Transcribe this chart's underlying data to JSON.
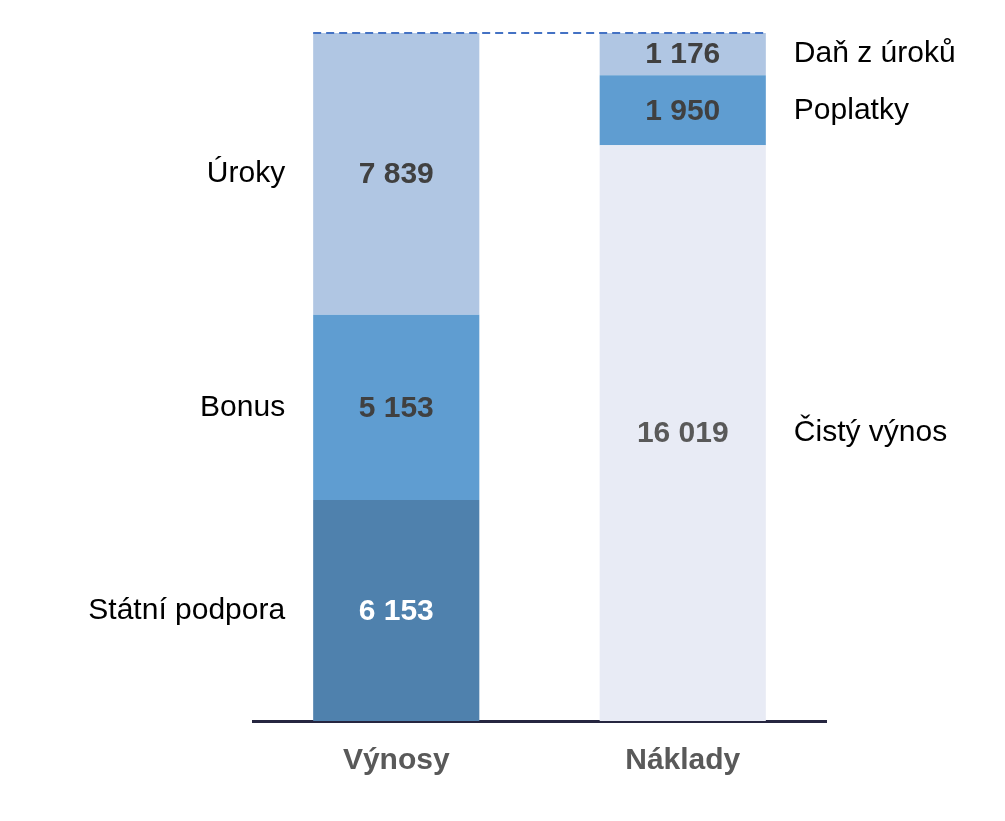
{
  "chart_data": {
    "type": "bar",
    "stacked": true,
    "categories": [
      "Výnosy",
      "Náklady"
    ],
    "series": [
      {
        "name": "Státní podpora",
        "color": "#4f81ad",
        "values": [
          6153,
          null
        ],
        "value_labels": [
          "6 153",
          null
        ]
      },
      {
        "name": "Bonus",
        "color": "#5f9dd1",
        "values": [
          5153,
          null
        ],
        "value_labels": [
          "5 153",
          null
        ]
      },
      {
        "name": "Úroky",
        "color": "#b0c6e3",
        "values": [
          7839,
          null
        ],
        "value_labels": [
          "7 839",
          null
        ]
      },
      {
        "name": "Čistý výnos",
        "color": "#e8ebf5",
        "values": [
          null,
          16019
        ],
        "value_labels": [
          null,
          "16 019"
        ]
      },
      {
        "name": "Poplatky",
        "color": "#5f9dd1",
        "values": [
          null,
          1950
        ],
        "value_labels": [
          null,
          "1 950"
        ]
      },
      {
        "name": "Daň z úroků",
        "color": "#b0c6e3",
        "values": [
          null,
          1176
        ],
        "value_labels": [
          null,
          "1 176"
        ]
      }
    ],
    "ref_lines": [
      {
        "axis": "y",
        "value": 19145,
        "color": "#4472c4",
        "line_style": "dashed"
      }
    ],
    "tick_labels": "x",
    "grid": false,
    "legend": false
  }
}
